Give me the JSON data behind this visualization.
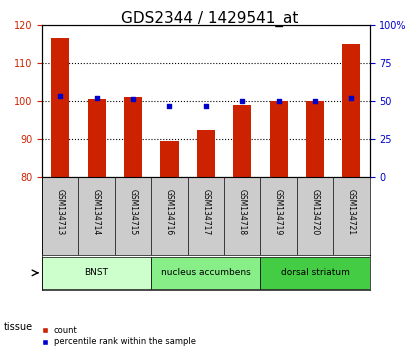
{
  "title": "GDS2344 / 1429541_at",
  "samples": [
    "GSM134713",
    "GSM134714",
    "GSM134715",
    "GSM134716",
    "GSM134717",
    "GSM134718",
    "GSM134719",
    "GSM134720",
    "GSM134721"
  ],
  "counts": [
    116.5,
    100.5,
    101.0,
    89.5,
    92.5,
    99.0,
    100.0,
    100.0,
    115.0
  ],
  "percentiles": [
    53,
    52,
    51,
    47,
    47,
    50,
    50,
    50,
    52
  ],
  "ylim_left": [
    80,
    120
  ],
  "ylim_right": [
    0,
    100
  ],
  "yticks_left": [
    80,
    90,
    100,
    110,
    120
  ],
  "yticks_right": [
    0,
    25,
    50,
    75,
    100
  ],
  "tissues": [
    {
      "label": "BNST",
      "start": 0,
      "end": 3,
      "color": "#ccffcc"
    },
    {
      "label": "nucleus accumbens",
      "start": 3,
      "end": 6,
      "color": "#88ee88"
    },
    {
      "label": "dorsal striatum",
      "start": 6,
      "end": 9,
      "color": "#44cc44"
    }
  ],
  "bar_color": "#cc2200",
  "dot_color": "#0000cc",
  "bar_width": 0.5,
  "background_color": "#ffffff",
  "axis_box_color": "#cccccc",
  "tissue_label": "tissue",
  "legend_count": "count",
  "legend_percentile": "percentile rank within the sample",
  "title_fontsize": 11,
  "tick_fontsize": 7,
  "label_fontsize": 8
}
